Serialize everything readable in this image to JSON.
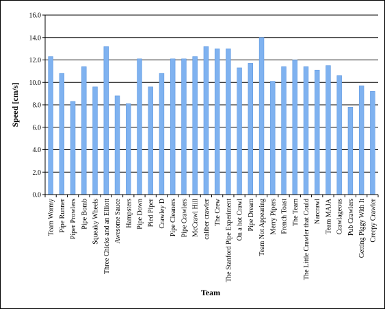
{
  "chart_data": {
    "type": "bar",
    "xlabel": "Team",
    "ylabel": "Speed [cm/s]",
    "ylim": [
      0,
      16
    ],
    "y_ticks": [
      "0.0",
      "2.0",
      "4.0",
      "6.0",
      "8.0",
      "10.0",
      "12.0",
      "14.0",
      "16.0"
    ],
    "grid": "horizontal",
    "legend": "none",
    "bar_color": "#7fb2f0",
    "categories": [
      "Team Wormy",
      "Pipe Runner",
      "Piper Prowlers",
      "Pipe Bomb",
      "Squeaky Wheels",
      "Three Chicks and an Elliott",
      "Awesome Sauce",
      "Hampsters",
      "Pipe Down",
      "Pied Piper",
      "Crawley D",
      "Pipe Cleaners",
      "Pipe Crawlers",
      "McCrawl Hill",
      "caliber crawler",
      "The Crew",
      "The Stanford Pipe Experiment",
      "On a hot Crawl",
      "Pipe Dream",
      "Team Not Appearing",
      "Merry Pipers",
      "French Toast",
      "The Team",
      "The Little Crawler that Could",
      "Narcrawl",
      "Team MAJA",
      "Crawlageous",
      "Pub Crawlers",
      "Getting Piggy With It",
      "Creepy Crawler"
    ],
    "values": [
      12.3,
      10.8,
      8.3,
      11.4,
      9.6,
      13.2,
      8.8,
      8.1,
      12.1,
      9.6,
      10.8,
      12.1,
      12.1,
      12.3,
      13.2,
      13.0,
      13.0,
      11.3,
      11.7,
      14.0,
      10.1,
      11.4,
      12.0,
      11.4,
      11.1,
      11.5,
      10.6,
      7.8,
      9.7,
      9.2
    ]
  }
}
